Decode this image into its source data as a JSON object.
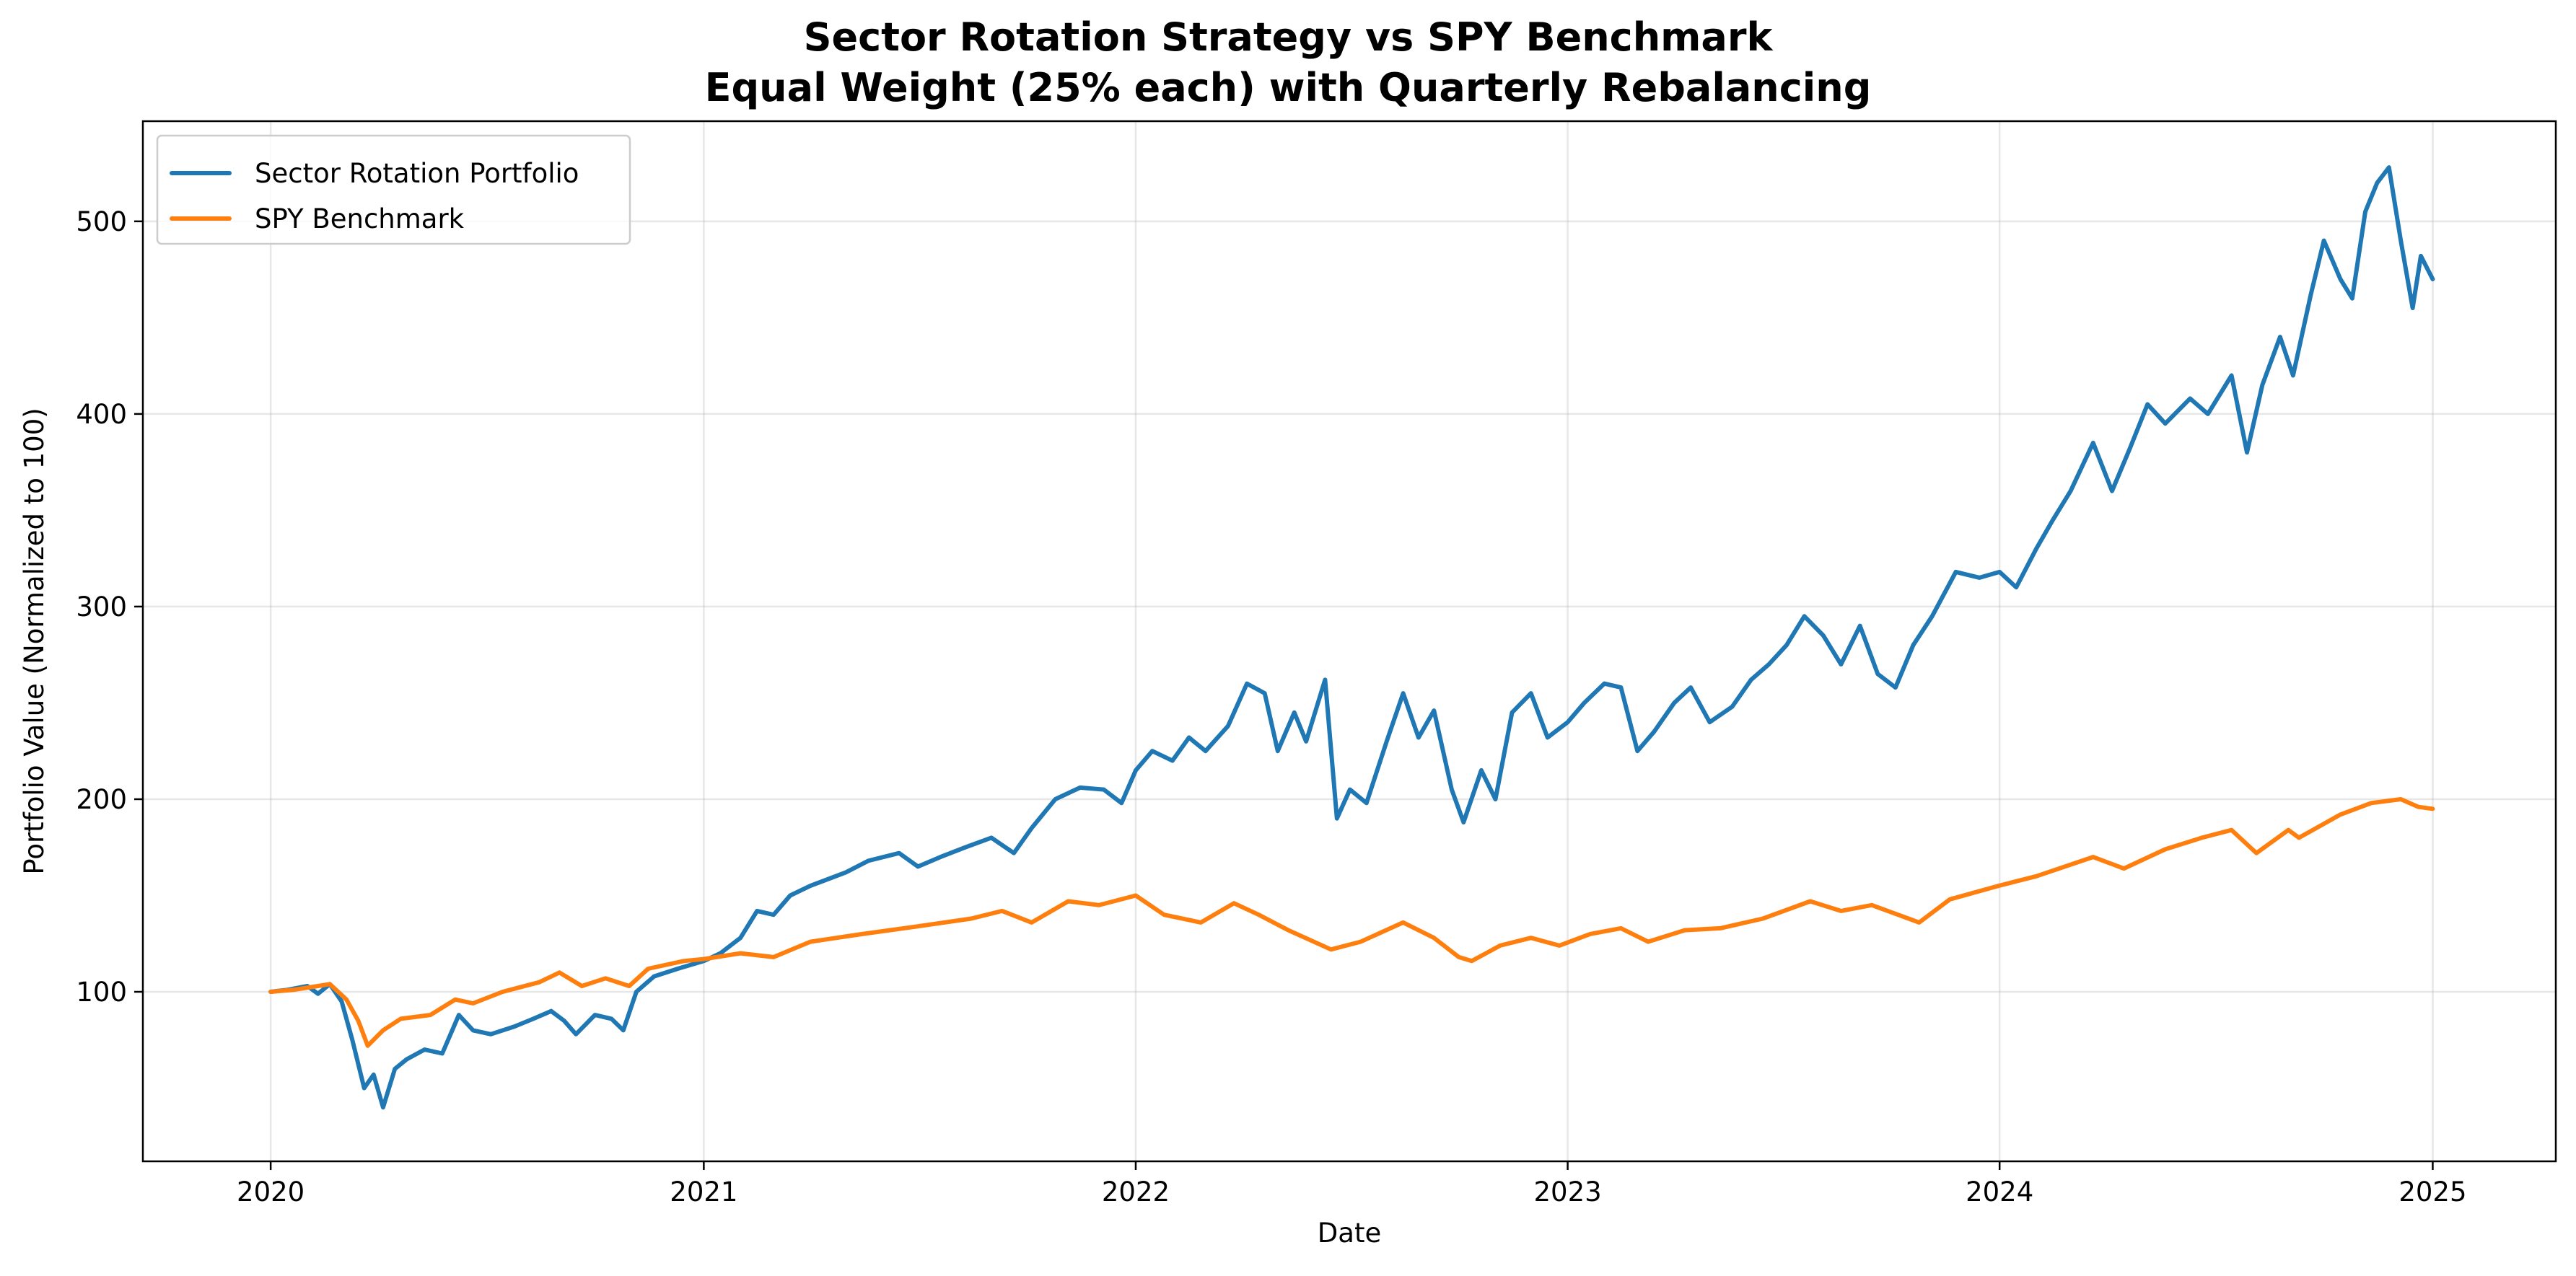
{
  "chart_data": {
    "type": "line",
    "title": "Sector Rotation Strategy vs SPY Benchmark",
    "subtitle": "Equal Weight (25% each) with Quarterly Rebalancing",
    "xlabel": "Date",
    "ylabel": "Portfolio Value (Normalized to 100)",
    "xlim": [
      "2019-09-15",
      "2025-04-15"
    ],
    "ylim": [
      12,
      552
    ],
    "x_ticks": [
      "2020-01-01",
      "2021-01-01",
      "2022-01-01",
      "2023-01-01",
      "2024-01-01",
      "2025-01-01"
    ],
    "x_tick_labels": [
      "2020",
      "2021",
      "2022",
      "2023",
      "2024",
      "2025"
    ],
    "y_ticks": [
      100,
      200,
      300,
      400,
      500
    ],
    "y_tick_labels": [
      "100",
      "200",
      "300",
      "400",
      "500"
    ],
    "grid": true,
    "legend_position": "upper-left",
    "series": [
      {
        "name": "Sector Rotation Portfolio",
        "color": "#1f77b4",
        "points": [
          [
            "2020-01-01",
            100
          ],
          [
            "2020-01-15",
            101
          ],
          [
            "2020-02-01",
            103
          ],
          [
            "2020-02-10",
            99
          ],
          [
            "2020-02-20",
            104
          ],
          [
            "2020-03-01",
            95
          ],
          [
            "2020-03-10",
            75
          ],
          [
            "2020-03-20",
            50
          ],
          [
            "2020-03-28",
            57
          ],
          [
            "2020-04-05",
            40
          ],
          [
            "2020-04-15",
            60
          ],
          [
            "2020-04-25",
            65
          ],
          [
            "2020-05-10",
            70
          ],
          [
            "2020-05-25",
            68
          ],
          [
            "2020-06-08",
            88
          ],
          [
            "2020-06-20",
            80
          ],
          [
            "2020-07-05",
            78
          ],
          [
            "2020-07-25",
            82
          ],
          [
            "2020-08-10",
            86
          ],
          [
            "2020-08-25",
            90
          ],
          [
            "2020-09-05",
            85
          ],
          [
            "2020-09-15",
            78
          ],
          [
            "2020-10-01",
            88
          ],
          [
            "2020-10-15",
            86
          ],
          [
            "2020-10-25",
            80
          ],
          [
            "2020-11-05",
            100
          ],
          [
            "2020-11-20",
            108
          ],
          [
            "2020-12-10",
            112
          ],
          [
            "2021-01-01",
            116
          ],
          [
            "2021-01-15",
            120
          ],
          [
            "2021-02-01",
            128
          ],
          [
            "2021-02-15",
            142
          ],
          [
            "2021-03-01",
            140
          ],
          [
            "2021-03-15",
            150
          ],
          [
            "2021-04-01",
            155
          ],
          [
            "2021-05-01",
            162
          ],
          [
            "2021-05-20",
            168
          ],
          [
            "2021-06-15",
            172
          ],
          [
            "2021-07-01",
            165
          ],
          [
            "2021-07-20",
            170
          ],
          [
            "2021-08-10",
            175
          ],
          [
            "2021-09-01",
            180
          ],
          [
            "2021-09-20",
            172
          ],
          [
            "2021-10-05",
            185
          ],
          [
            "2021-10-25",
            200
          ],
          [
            "2021-11-15",
            206
          ],
          [
            "2021-12-05",
            205
          ],
          [
            "2021-12-20",
            198
          ],
          [
            "2022-01-01",
            215
          ],
          [
            "2022-01-15",
            225
          ],
          [
            "2022-02-01",
            220
          ],
          [
            "2022-02-15",
            232
          ],
          [
            "2022-03-01",
            225
          ],
          [
            "2022-03-20",
            238
          ],
          [
            "2022-04-05",
            260
          ],
          [
            "2022-04-20",
            255
          ],
          [
            "2022-05-01",
            225
          ],
          [
            "2022-05-15",
            245
          ],
          [
            "2022-05-25",
            230
          ],
          [
            "2022-06-10",
            262
          ],
          [
            "2022-06-20",
            190
          ],
          [
            "2022-07-01",
            205
          ],
          [
            "2022-07-15",
            198
          ],
          [
            "2022-08-01",
            230
          ],
          [
            "2022-08-15",
            255
          ],
          [
            "2022-08-28",
            232
          ],
          [
            "2022-09-10",
            246
          ],
          [
            "2022-09-25",
            205
          ],
          [
            "2022-10-05",
            188
          ],
          [
            "2022-10-20",
            215
          ],
          [
            "2022-11-01",
            200
          ],
          [
            "2022-11-15",
            245
          ],
          [
            "2022-12-01",
            255
          ],
          [
            "2022-12-15",
            232
          ],
          [
            "2023-01-01",
            240
          ],
          [
            "2023-01-15",
            250
          ],
          [
            "2023-02-01",
            260
          ],
          [
            "2023-02-15",
            258
          ],
          [
            "2023-03-01",
            225
          ],
          [
            "2023-03-15",
            235
          ],
          [
            "2023-04-01",
            250
          ],
          [
            "2023-04-15",
            258
          ],
          [
            "2023-05-01",
            240
          ],
          [
            "2023-05-20",
            248
          ],
          [
            "2023-06-05",
            262
          ],
          [
            "2023-06-20",
            270
          ],
          [
            "2023-07-05",
            280
          ],
          [
            "2023-07-20",
            295
          ],
          [
            "2023-08-05",
            285
          ],
          [
            "2023-08-20",
            270
          ],
          [
            "2023-09-05",
            290
          ],
          [
            "2023-09-20",
            265
          ],
          [
            "2023-10-05",
            258
          ],
          [
            "2023-10-20",
            280
          ],
          [
            "2023-11-05",
            295
          ],
          [
            "2023-11-25",
            318
          ],
          [
            "2023-12-15",
            315
          ],
          [
            "2024-01-01",
            318
          ],
          [
            "2024-01-15",
            310
          ],
          [
            "2024-02-01",
            330
          ],
          [
            "2024-02-15",
            345
          ],
          [
            "2024-03-01",
            360
          ],
          [
            "2024-03-20",
            385
          ],
          [
            "2024-04-05",
            360
          ],
          [
            "2024-04-20",
            382
          ],
          [
            "2024-05-05",
            405
          ],
          [
            "2024-05-20",
            395
          ],
          [
            "2024-06-10",
            408
          ],
          [
            "2024-06-25",
            400
          ],
          [
            "2024-07-15",
            420
          ],
          [
            "2024-07-28",
            380
          ],
          [
            "2024-08-10",
            415
          ],
          [
            "2024-08-25",
            440
          ],
          [
            "2024-09-05",
            420
          ],
          [
            "2024-09-20",
            462
          ],
          [
            "2024-10-01",
            490
          ],
          [
            "2024-10-15",
            470
          ],
          [
            "2024-10-25",
            460
          ],
          [
            "2024-11-05",
            505
          ],
          [
            "2024-11-15",
            520
          ],
          [
            "2024-11-25",
            528
          ],
          [
            "2024-12-05",
            490
          ],
          [
            "2024-12-15",
            455
          ],
          [
            "2024-12-22",
            482
          ],
          [
            "2025-01-01",
            470
          ]
        ]
      },
      {
        "name": "SPY Benchmark",
        "color": "#ff7f0e",
        "points": [
          [
            "2020-01-01",
            100
          ],
          [
            "2020-01-20",
            101
          ],
          [
            "2020-02-10",
            103
          ],
          [
            "2020-02-20",
            104
          ],
          [
            "2020-03-05",
            96
          ],
          [
            "2020-03-15",
            85
          ],
          [
            "2020-03-23",
            72
          ],
          [
            "2020-04-05",
            80
          ],
          [
            "2020-04-20",
            86
          ],
          [
            "2020-05-15",
            88
          ],
          [
            "2020-06-05",
            96
          ],
          [
            "2020-06-20",
            94
          ],
          [
            "2020-07-15",
            100
          ],
          [
            "2020-08-15",
            105
          ],
          [
            "2020-09-01",
            110
          ],
          [
            "2020-09-20",
            103
          ],
          [
            "2020-10-10",
            107
          ],
          [
            "2020-10-30",
            103
          ],
          [
            "2020-11-15",
            112
          ],
          [
            "2020-12-15",
            116
          ],
          [
            "2021-01-01",
            117
          ],
          [
            "2021-02-01",
            120
          ],
          [
            "2021-03-01",
            118
          ],
          [
            "2021-04-01",
            126
          ],
          [
            "2021-05-15",
            130
          ],
          [
            "2021-07-01",
            134
          ],
          [
            "2021-08-15",
            138
          ],
          [
            "2021-09-10",
            142
          ],
          [
            "2021-10-05",
            136
          ],
          [
            "2021-11-05",
            147
          ],
          [
            "2021-12-01",
            145
          ],
          [
            "2022-01-01",
            150
          ],
          [
            "2022-01-25",
            140
          ],
          [
            "2022-02-25",
            136
          ],
          [
            "2022-03-25",
            146
          ],
          [
            "2022-04-15",
            140
          ],
          [
            "2022-05-10",
            132
          ],
          [
            "2022-06-15",
            122
          ],
          [
            "2022-07-10",
            126
          ],
          [
            "2022-08-15",
            136
          ],
          [
            "2022-09-10",
            128
          ],
          [
            "2022-10-01",
            118
          ],
          [
            "2022-10-12",
            116
          ],
          [
            "2022-11-05",
            124
          ],
          [
            "2022-12-01",
            128
          ],
          [
            "2022-12-25",
            124
          ],
          [
            "2023-01-20",
            130
          ],
          [
            "2023-02-15",
            133
          ],
          [
            "2023-03-10",
            126
          ],
          [
            "2023-04-10",
            132
          ],
          [
            "2023-05-10",
            133
          ],
          [
            "2023-06-15",
            138
          ],
          [
            "2023-07-25",
            147
          ],
          [
            "2023-08-20",
            142
          ],
          [
            "2023-09-15",
            145
          ],
          [
            "2023-10-25",
            136
          ],
          [
            "2023-11-20",
            148
          ],
          [
            "2023-12-31",
            155
          ],
          [
            "2024-02-01",
            160
          ],
          [
            "2024-03-20",
            170
          ],
          [
            "2024-04-15",
            164
          ],
          [
            "2024-05-20",
            174
          ],
          [
            "2024-06-20",
            180
          ],
          [
            "2024-07-15",
            184
          ],
          [
            "2024-08-05",
            172
          ],
          [
            "2024-09-01",
            184
          ],
          [
            "2024-09-10",
            180
          ],
          [
            "2024-10-15",
            192
          ],
          [
            "2024-11-10",
            198
          ],
          [
            "2024-12-05",
            200
          ],
          [
            "2024-12-20",
            196
          ],
          [
            "2025-01-01",
            195
          ]
        ]
      }
    ]
  }
}
